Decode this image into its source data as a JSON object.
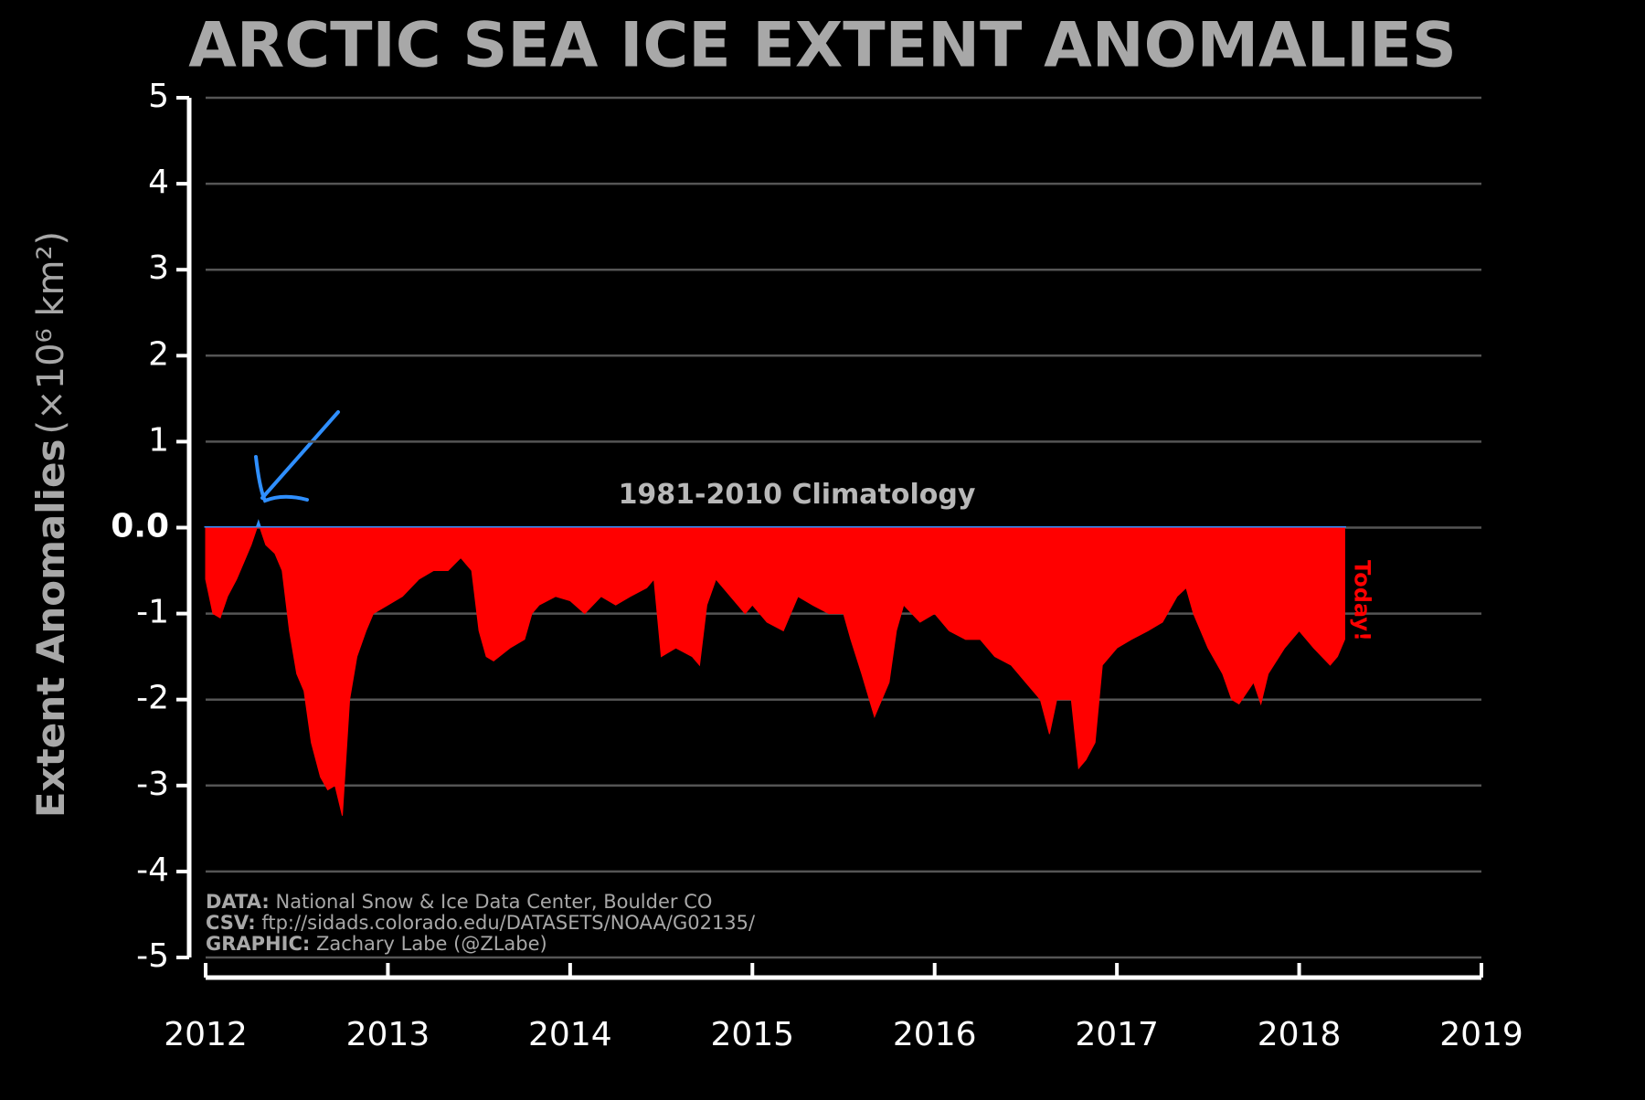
{
  "chart_data": {
    "type": "area",
    "title": "ARCTIC SEA ICE EXTENT ANOMALIES",
    "y_label": "Extent Anomalies",
    "y_label_units": "(×10⁶ km²)",
    "annotation": "1981-2010 Climatology",
    "end_label": "Today!",
    "credits": [
      {
        "key": "DATA:",
        "text": "National Snow & Ice Data Center, Boulder CO"
      },
      {
        "key": "CSV:",
        "text": "ftp://sidads.colorado.edu/DATASETS/NOAA/G02135/"
      },
      {
        "key": "GRAPHIC:",
        "text": "Zachary Labe (@ZLabe)"
      }
    ],
    "color": "#ff0000",
    "positive_color": "#2f8fff",
    "grid": true,
    "xlim": [
      2012,
      2019
    ],
    "xticks": [
      2012,
      2013,
      2014,
      2015,
      2016,
      2017,
      2018,
      2019
    ],
    "ylim": [
      -5,
      5
    ],
    "yticks": [
      5,
      4,
      3,
      2,
      1,
      {
        "value": 0,
        "label": "0.0"
      },
      -1,
      -2,
      -3,
      -4,
      -5
    ],
    "x": [
      2012.0,
      2012.04,
      2012.08,
      2012.12,
      2012.17,
      2012.21,
      2012.25,
      2012.29,
      2012.33,
      2012.38,
      2012.42,
      2012.46,
      2012.5,
      2012.54,
      2012.58,
      2012.63,
      2012.67,
      2012.71,
      2012.75,
      2012.79,
      2012.83,
      2012.88,
      2012.92,
      2013.0,
      2013.08,
      2013.17,
      2013.25,
      2013.33,
      2013.4,
      2013.46,
      2013.5,
      2013.54,
      2013.58,
      2013.67,
      2013.75,
      2013.79,
      2013.83,
      2013.92,
      2014.0,
      2014.08,
      2014.17,
      2014.25,
      2014.33,
      2014.42,
      2014.46,
      2014.5,
      2014.58,
      2014.67,
      2014.71,
      2014.75,
      2014.8,
      2014.88,
      2014.96,
      2015.0,
      2015.08,
      2015.17,
      2015.25,
      2015.33,
      2015.42,
      2015.5,
      2015.54,
      2015.6,
      2015.67,
      2015.71,
      2015.75,
      2015.79,
      2015.83,
      2015.92,
      2016.0,
      2016.08,
      2016.17,
      2016.25,
      2016.33,
      2016.42,
      2016.5,
      2016.58,
      2016.63,
      2016.67,
      2016.75,
      2016.79,
      2016.83,
      2016.88,
      2016.92,
      2017.0,
      2017.08,
      2017.17,
      2017.25,
      2017.33,
      2017.38,
      2017.42,
      2017.5,
      2017.58,
      2017.63,
      2017.67,
      2017.75,
      2017.79,
      2017.83,
      2017.92,
      2018.0,
      2018.08,
      2018.17,
      2018.21,
      2018.25
    ],
    "values": [
      -0.6,
      -1.0,
      -1.05,
      -0.8,
      -0.6,
      -0.4,
      -0.2,
      0.05,
      -0.2,
      -0.3,
      -0.5,
      -1.2,
      -1.7,
      -1.9,
      -2.5,
      -2.9,
      -3.05,
      -3.0,
      -3.35,
      -2.0,
      -1.5,
      -1.2,
      -1.0,
      -0.9,
      -0.8,
      -0.6,
      -0.5,
      -0.5,
      -0.35,
      -0.5,
      -1.2,
      -1.5,
      -1.55,
      -1.4,
      -1.3,
      -1.0,
      -0.9,
      -0.8,
      -0.85,
      -1.0,
      -0.8,
      -0.9,
      -0.8,
      -0.7,
      -0.6,
      -1.5,
      -1.4,
      -1.5,
      -1.6,
      -0.9,
      -0.6,
      -0.8,
      -1.0,
      -0.9,
      -1.1,
      -1.2,
      -0.8,
      -0.9,
      -1.0,
      -1.0,
      -1.3,
      -1.7,
      -2.2,
      -2.0,
      -1.8,
      -1.2,
      -0.9,
      -1.1,
      -1.0,
      -1.2,
      -1.3,
      -1.3,
      -1.5,
      -1.6,
      -1.8,
      -2.0,
      -2.4,
      -2.0,
      -2.0,
      -2.8,
      -2.7,
      -2.5,
      -1.6,
      -1.4,
      -1.3,
      -1.2,
      -1.1,
      -0.8,
      -0.7,
      -1.0,
      -1.4,
      -1.7,
      -2.0,
      -2.05,
      -1.8,
      -2.05,
      -1.7,
      -1.4,
      -1.2,
      -1.4,
      -1.6,
      -1.5,
      -1.3
    ]
  }
}
